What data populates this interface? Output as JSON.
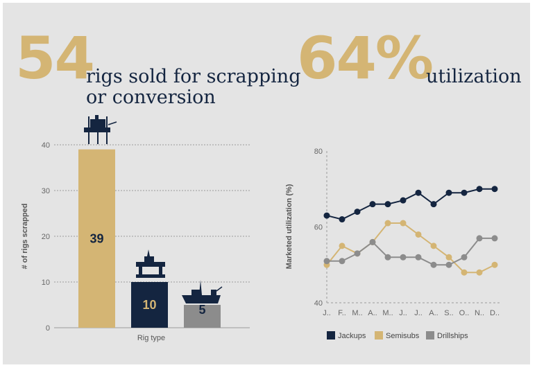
{
  "left": {
    "stat_value": "54",
    "stat_text": "rigs sold for scrapping or conversion"
  },
  "right": {
    "stat_value": "64%",
    "stat_text": "utilization"
  },
  "colors": {
    "gold": "#d4b574",
    "navy": "#142540",
    "gray": "#8c8c8c",
    "background": "#e4e4e4"
  },
  "icons": {
    "jackups": "jackup-rig-icon",
    "semisubs": "semisub-rig-icon",
    "drillships": "drillship-icon"
  },
  "chart_data": [
    {
      "type": "bar",
      "categories": [
        "Jackups",
        "Semisubs",
        "Drillships"
      ],
      "values": [
        39,
        10,
        5
      ],
      "xlabel": "Rig type",
      "ylabel": "# of rigs scrapped",
      "ylim": [
        0,
        40
      ],
      "yticks": [
        0,
        10,
        20,
        30,
        40
      ],
      "colors": [
        "#d4b574",
        "#142540",
        "#8c8c8c"
      ],
      "label_colors": [
        "#142540",
        "#d4b574",
        "#142540"
      ],
      "grid": true
    },
    {
      "type": "line",
      "x": [
        "J..",
        "F..",
        "M..",
        "A..",
        "M..",
        "J..",
        "J..",
        "A..",
        "S..",
        "O..",
        "N..",
        "D.."
      ],
      "ylabel": "Marketed utilization (%)",
      "ylim": [
        40,
        80
      ],
      "yticks": [
        40,
        60,
        80
      ],
      "legend_position": "bottom",
      "series": [
        {
          "name": "Jackups",
          "color": "#142540",
          "values": [
            63,
            62,
            64,
            66,
            66,
            67,
            69,
            66,
            69,
            69,
            70,
            70
          ]
        },
        {
          "name": "Semisubs",
          "color": "#d4b574",
          "values": [
            50,
            55,
            53,
            56,
            61,
            61,
            58,
            55,
            52,
            48,
            48,
            50
          ]
        },
        {
          "name": "Drillships",
          "color": "#8c8c8c",
          "values": [
            51,
            51,
            53,
            56,
            52,
            52,
            52,
            50,
            50,
            52,
            57,
            57
          ]
        }
      ]
    }
  ]
}
